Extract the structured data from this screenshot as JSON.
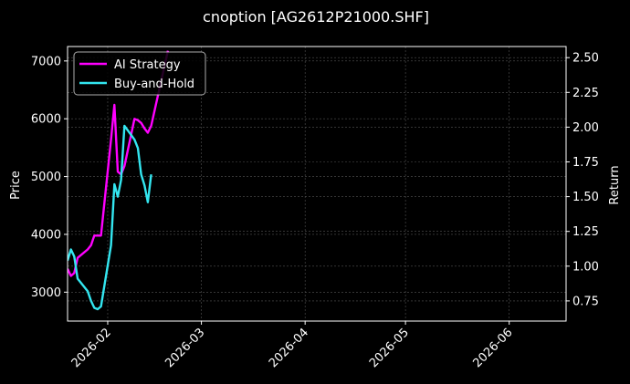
{
  "chart_data": {
    "type": "line",
    "title": "cnoption [AG2612P21000.SHF]",
    "xlabel": "",
    "ylabel": "Price",
    "y2label": "Return",
    "xlim": [
      "2026-01-20",
      "2026-06-18"
    ],
    "ylim": [
      2500,
      7250
    ],
    "y2lim": [
      0.605,
      2.58
    ],
    "x_ticks": [
      "2026-02",
      "2026-03",
      "2026-04",
      "2026-05",
      "2026-06"
    ],
    "y_ticks": [
      3000,
      4000,
      5000,
      6000,
      7000
    ],
    "y2_ticks": [
      "0.75",
      "1.00",
      "1.25",
      "1.50",
      "1.75",
      "2.00",
      "2.25",
      "2.50"
    ],
    "grid": true,
    "legend_position": "upper-left",
    "series": [
      {
        "name": "AI Strategy",
        "color": "#ff00ff",
        "axis": "right",
        "x": [
          "2026-01-20",
          "2026-01-21",
          "2026-01-22",
          "2026-01-23",
          "2026-01-26",
          "2026-01-27",
          "2026-01-28",
          "2026-01-29",
          "2026-01-30",
          "2026-02-02",
          "2026-02-03",
          "2026-02-04",
          "2026-02-05",
          "2026-02-06",
          "2026-02-09",
          "2026-02-10",
          "2026-02-11",
          "2026-02-12",
          "2026-02-13",
          "2026-02-14"
        ],
        "y": [
          0.98,
          0.93,
          0.95,
          1.06,
          1.12,
          1.15,
          1.22,
          1.22,
          1.22,
          1.91,
          2.16,
          1.68,
          1.66,
          1.72,
          2.06,
          2.05,
          2.03,
          1.99,
          1.96,
          2.01
        ]
      },
      {
        "name": "Buy-and-Hold",
        "color": "#33e6f0",
        "axis": "right",
        "x": [
          "2026-01-20",
          "2026-01-21",
          "2026-01-22",
          "2026-01-23",
          "2026-01-26",
          "2026-01-27",
          "2026-01-28",
          "2026-01-29",
          "2026-01-30",
          "2026-02-02",
          "2026-02-03",
          "2026-02-04",
          "2026-02-05",
          "2026-02-06",
          "2026-02-09",
          "2026-02-10",
          "2026-02-11",
          "2026-02-12",
          "2026-02-13",
          "2026-02-14"
        ],
        "y": [
          1.04,
          1.12,
          1.07,
          0.91,
          0.82,
          0.75,
          0.7,
          0.69,
          0.71,
          1.15,
          1.59,
          1.5,
          1.62,
          2.01,
          1.91,
          1.85,
          1.66,
          1.58,
          1.46,
          1.66
        ]
      }
    ],
    "series_extent": {
      "ai_to": "2026-02-19",
      "ai_end_y": 2.55,
      "bh_end_y": 1.66
    }
  }
}
